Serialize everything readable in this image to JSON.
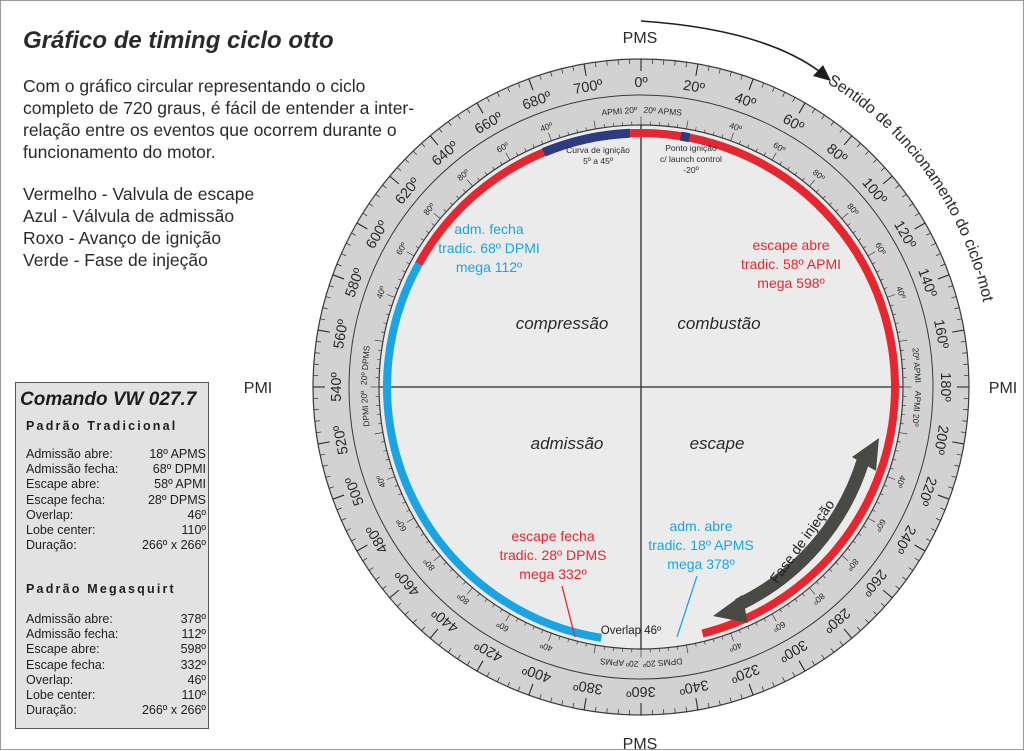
{
  "title": "Gráfico de timing ciclo otto",
  "intro": "Com o gráfico circular representando o ciclo completo de 720 graus, é fácil de entender a inter-relação entre os eventos que ocorrem durante o funcionamento do motor.",
  "legend": [
    "Vermelho - Valvula de escape",
    "Azul - Válvula de admissão",
    "Roxo - Avanço de ignição",
    "Verde - Fase de injeção"
  ],
  "spec": {
    "title": "Comando VW 027.7",
    "traditional": {
      "heading": "Padrão Tradicional",
      "rows": [
        {
          "label": "Admissão abre:",
          "value": "18º APMS"
        },
        {
          "label": "Admissão fecha:",
          "value": "68º DPMI"
        },
        {
          "label": "Escape abre:",
          "value": "58º APMI"
        },
        {
          "label": "Escape fecha:",
          "value": "28º DPMS"
        },
        {
          "label": "Overlap:",
          "value": "46º"
        },
        {
          "label": "Lobe center:",
          "value": "110º"
        },
        {
          "label": "Duração:",
          "value": "266º x 266º"
        }
      ]
    },
    "megasquirt": {
      "heading": "Padrão Megasquirt",
      "rows": [
        {
          "label": "Admissão abre:",
          "value": "378º"
        },
        {
          "label": "Admissão fecha:",
          "value": "112º"
        },
        {
          "label": "Escape abre:",
          "value": "598º"
        },
        {
          "label": "Escape fecha:",
          "value": "332º"
        },
        {
          "label": "Overlap:",
          "value": "46º"
        },
        {
          "label": "Lobe center:",
          "value": "110º"
        },
        {
          "label": "Duração:",
          "value": "266º x 266º"
        }
      ]
    }
  },
  "dial": {
    "pms_top": "PMS",
    "pms_bottom": "PMS",
    "pmi_left": "PMI",
    "pmi_right": "PMI",
    "direction_label": "Sentido de funcionamento do ciclo-motor",
    "outer_labels": [
      "0º",
      "20º",
      "40º",
      "60º",
      "80º",
      "100º",
      "120º",
      "140º",
      "160º",
      "180º",
      "200º",
      "220º",
      "240º",
      "260º",
      "280º",
      "300º",
      "320º",
      "340º",
      "360º",
      "380º",
      "400º",
      "420º",
      "440º",
      "460º",
      "480º",
      "500º",
      "520º",
      "540º",
      "560º",
      "580º",
      "600º",
      "620º",
      "640º",
      "660º",
      "680º",
      "700º"
    ],
    "inner_labels": [
      "20º APMS",
      "40º",
      "60º",
      "80º",
      "80º",
      "60º",
      "40º",
      "20º APMI",
      "APMI 20º",
      "40º",
      "60º",
      "80º",
      "80º",
      "60º",
      "40º",
      "DPMS 20º",
      "20º APMS",
      "40º",
      "60º",
      "80º",
      "80º",
      "60º",
      "40º",
      "DPMI 20º",
      "20º DPMS",
      "40º",
      "60º",
      "80º",
      "80º",
      "60º",
      "40º",
      "APMI 20º"
    ],
    "quadrant_labels": [
      "compressão",
      "combustão",
      "admissão",
      "escape"
    ],
    "intake_close_annotation": [
      "adm. fecha",
      "tradic. 68º DPMI",
      "mega 112º"
    ],
    "exhaust_open_annotation": [
      "escape abre",
      "tradic. 58º APMI",
      "mega 598º"
    ],
    "exhaust_close_annotation": [
      "escape fecha",
      "tradic. 28º DPMS",
      "mega 332º"
    ],
    "intake_open_annotation": [
      "adm. abre",
      "tradic. 18º APMS",
      "mega 378º"
    ],
    "ignition_curve_label": [
      "Curva de ignição",
      "5º a 45º"
    ],
    "ignition_point_label": [
      "Ponto ignição",
      "c/ launch control",
      "-20º"
    ],
    "overlap_label": "Overlap 46º",
    "injection_label": "Fase de injeção",
    "intake_event": {
      "opens": 378,
      "closes": 112
    },
    "exhaust_event": {
      "opens": 598,
      "closes": 332
    },
    "ignition_curve": {
      "from": 5,
      "to": 45
    },
    "ignition_launch": -20,
    "colors": {
      "exhaust": "#e8262f",
      "intake": "#1aa4e4",
      "ignition": "#2d3b80",
      "injection": "#4a4a44",
      "ring": "#d2d2d2",
      "face": "#ebebeb"
    }
  }
}
